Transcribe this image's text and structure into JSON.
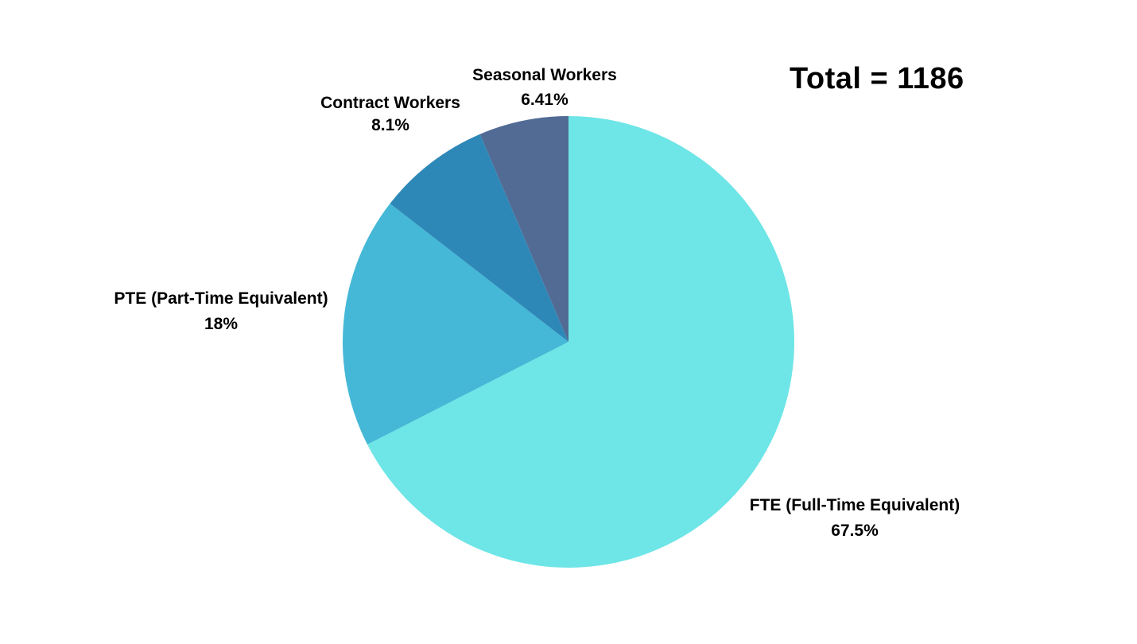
{
  "total_label": "Total = 1186",
  "chart_data": {
    "type": "pie",
    "total": 1186,
    "start_angle_deg": 0,
    "direction": "clockwise",
    "legend": "none",
    "slices": [
      {
        "label": "FTE (Full-Time Equivalent)",
        "value": 67.5,
        "value_label": "67.5%",
        "color": "#6ee5e6"
      },
      {
        "label": "PTE (Part-Time Equivalent)",
        "value": 18,
        "value_label": "18%",
        "color": "#44b8d6"
      },
      {
        "label": "Contract Workers",
        "value": 8.1,
        "value_label": "8.1%",
        "color": "#2e88b7"
      },
      {
        "label": "Seasonal Workers",
        "value": 6.41,
        "value_label": "6.41%",
        "color": "#516b95"
      }
    ]
  }
}
